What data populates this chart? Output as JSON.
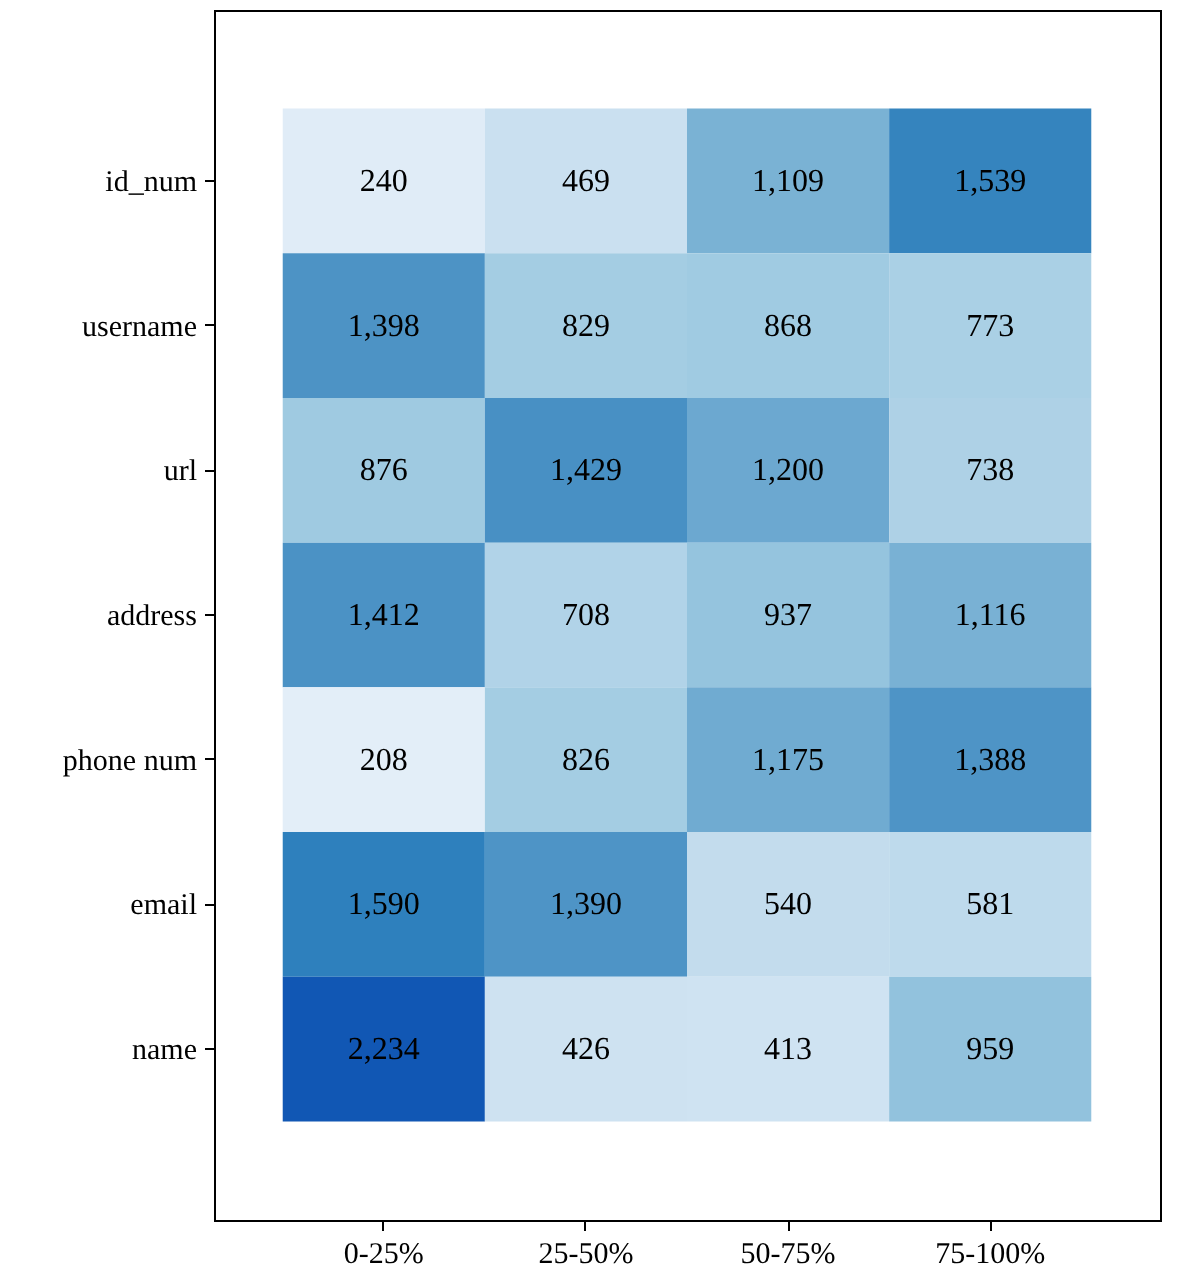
{
  "chart_data": {
    "type": "heatmap",
    "categories": [
      "0-25%",
      "25-50%",
      "50-75%",
      "75-100%"
    ],
    "y_categories": [
      "id_num",
      "username",
      "url",
      "address",
      "phone num",
      "email",
      "name"
    ],
    "cells": [
      [
        240,
        469,
        1109,
        1539
      ],
      [
        1398,
        829,
        868,
        773
      ],
      [
        876,
        1429,
        1200,
        738
      ],
      [
        1412,
        708,
        937,
        1116
      ],
      [
        208,
        826,
        1175,
        1388
      ],
      [
        1590,
        1390,
        540,
        581
      ],
      [
        2234,
        426,
        413,
        959
      ]
    ],
    "cell_labels": [
      [
        "240",
        "469",
        "1,109",
        "1,539"
      ],
      [
        "1,398",
        "829",
        "868",
        "773"
      ],
      [
        "876",
        "1,429",
        "1,200",
        "738"
      ],
      [
        "1,412",
        "708",
        "937",
        "1,116"
      ],
      [
        "208",
        "826",
        "1,175",
        "1,388"
      ],
      [
        "1,590",
        "1,390",
        "540",
        "581"
      ],
      [
        "2,234",
        "426",
        "413",
        "959"
      ]
    ],
    "colors": [
      "#e3eef8",
      "#9ecae1",
      "#3182bd",
      "#1157b4"
    ],
    "data_labels": true
  }
}
